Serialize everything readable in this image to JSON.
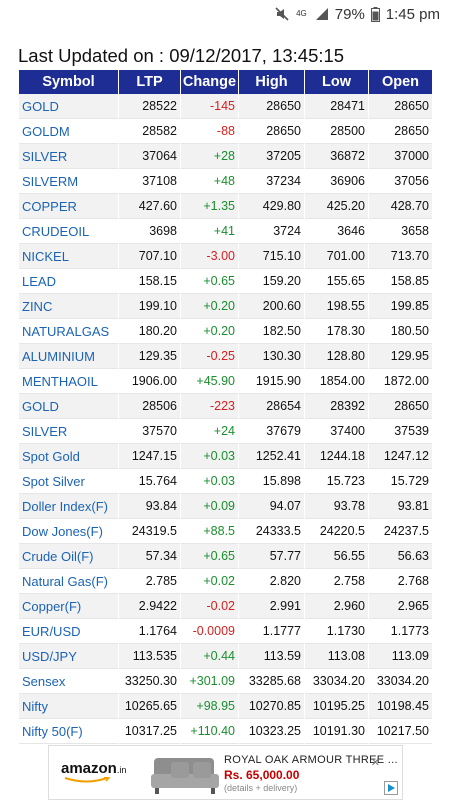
{
  "status_bar": {
    "network": "4G",
    "battery": "79%",
    "time": "1:45 pm"
  },
  "title": "Last Updated on : 09/12/2017, 13:45:15",
  "table": {
    "headers": [
      "Symbol",
      "LTP",
      "Change",
      "High",
      "Low",
      "Open"
    ],
    "rows": [
      {
        "symbol": "GOLD",
        "ltp": "28522",
        "change": "-145",
        "high": "28650",
        "low": "28471",
        "open": "28650"
      },
      {
        "symbol": "GOLDM",
        "ltp": "28582",
        "change": "-88",
        "high": "28650",
        "low": "28500",
        "open": "28650"
      },
      {
        "symbol": "SILVER",
        "ltp": "37064",
        "change": "+28",
        "high": "37205",
        "low": "36872",
        "open": "37000"
      },
      {
        "symbol": "SILVERM",
        "ltp": "37108",
        "change": "+48",
        "high": "37234",
        "low": "36906",
        "open": "37056"
      },
      {
        "symbol": "COPPER",
        "ltp": "427.60",
        "change": "+1.35",
        "high": "429.80",
        "low": "425.20",
        "open": "428.70"
      },
      {
        "symbol": "CRUDEOIL",
        "ltp": "3698",
        "change": "+41",
        "high": "3724",
        "low": "3646",
        "open": "3658"
      },
      {
        "symbol": "NICKEL",
        "ltp": "707.10",
        "change": "-3.00",
        "high": "715.10",
        "low": "701.00",
        "open": "713.70"
      },
      {
        "symbol": "LEAD",
        "ltp": "158.15",
        "change": "+0.65",
        "high": "159.20",
        "low": "155.65",
        "open": "158.85"
      },
      {
        "symbol": "ZINC",
        "ltp": "199.10",
        "change": "+0.20",
        "high": "200.60",
        "low": "198.55",
        "open": "199.85"
      },
      {
        "symbol": "NATURALGAS",
        "ltp": "180.20",
        "change": "+0.20",
        "high": "182.50",
        "low": "178.30",
        "open": "180.50"
      },
      {
        "symbol": "ALUMINIUM",
        "ltp": "129.35",
        "change": "-0.25",
        "high": "130.30",
        "low": "128.80",
        "open": "129.95"
      },
      {
        "symbol": "MENTHAOIL",
        "ltp": "1906.00",
        "change": "+45.90",
        "high": "1915.90",
        "low": "1854.00",
        "open": "1872.00"
      },
      {
        "symbol": "GOLD",
        "ltp": "28506",
        "change": "-223",
        "high": "28654",
        "low": "28392",
        "open": "28650"
      },
      {
        "symbol": "SILVER",
        "ltp": "37570",
        "change": "+24",
        "high": "37679",
        "low": "37400",
        "open": "37539"
      },
      {
        "symbol": "Spot Gold",
        "ltp": "1247.15",
        "change": "+0.03",
        "high": "1252.41",
        "low": "1244.18",
        "open": "1247.12"
      },
      {
        "symbol": "Spot Silver",
        "ltp": "15.764",
        "change": "+0.03",
        "high": "15.898",
        "low": "15.723",
        "open": "15.729"
      },
      {
        "symbol": "Doller Index(F)",
        "ltp": "93.84",
        "change": "+0.09",
        "high": "94.07",
        "low": "93.78",
        "open": "93.81"
      },
      {
        "symbol": "Dow Jones(F)",
        "ltp": "24319.5",
        "change": "+88.5",
        "high": "24333.5",
        "low": "24220.5",
        "open": "24237.5"
      },
      {
        "symbol": "Crude Oil(F)",
        "ltp": "57.34",
        "change": "+0.65",
        "high": "57.77",
        "low": "56.55",
        "open": "56.63"
      },
      {
        "symbol": "Natural Gas(F)",
        "ltp": "2.785",
        "change": "+0.02",
        "high": "2.820",
        "low": "2.758",
        "open": "2.768"
      },
      {
        "symbol": "Copper(F)",
        "ltp": "2.9422",
        "change": "-0.02",
        "high": "2.991",
        "low": "2.960",
        "open": "2.965"
      },
      {
        "symbol": "EUR/USD",
        "ltp": "1.1764",
        "change": "-0.0009",
        "high": "1.1777",
        "low": "1.1730",
        "open": "1.1773"
      },
      {
        "symbol": "USD/JPY",
        "ltp": "113.535",
        "change": "+0.44",
        "high": "113.59",
        "low": "113.08",
        "open": "113.09"
      },
      {
        "symbol": "Sensex",
        "ltp": "33250.30",
        "change": "+301.09",
        "high": "33285.68",
        "low": "33034.20",
        "open": "33034.20"
      },
      {
        "symbol": "Nifty",
        "ltp": "10265.65",
        "change": "+98.95",
        "high": "10270.85",
        "low": "10195.25",
        "open": "10198.45"
      },
      {
        "symbol": "Nifty 50(F)",
        "ltp": "10317.25",
        "change": "+110.40",
        "high": "10323.25",
        "low": "10191.30",
        "open": "10217.50"
      }
    ]
  },
  "colors": {
    "header_bg": "#1e2d93",
    "symbol": "#1b63b5",
    "positive": "#1a8f2e",
    "negative": "#d61f1f"
  },
  "ad": {
    "brand": "amazon",
    "brand_suffix": ".in",
    "title": "ROYAL OAK ARMOUR THREE ...",
    "price": "Rs. 65,000.00",
    "subtitle": "(details + delivery)"
  }
}
